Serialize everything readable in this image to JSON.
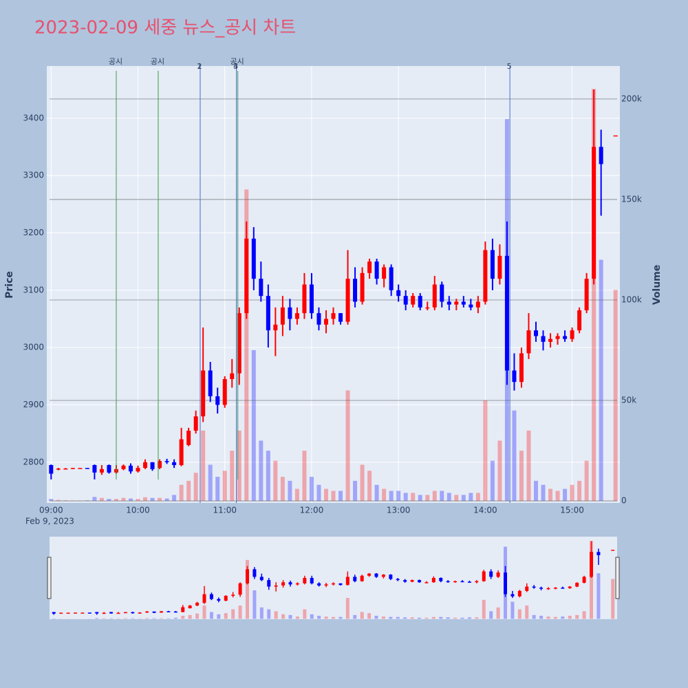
{
  "chart_data": {
    "type": "candlestick",
    "title": "2023-02-09 세중 뉴스_공시 차트",
    "y_label": "Price",
    "y2_label": "Volume",
    "x_sublabel": "Feb 9, 2023",
    "x": [
      "09:00",
      "09:05",
      "09:10",
      "09:15",
      "09:20",
      "09:25",
      "09:30",
      "09:35",
      "09:40",
      "09:45",
      "09:50",
      "09:55",
      "10:00",
      "10:05",
      "10:10",
      "10:15",
      "10:20",
      "10:25",
      "10:30",
      "10:35",
      "10:40",
      "10:45",
      "10:50",
      "10:55",
      "11:00",
      "11:05",
      "11:10",
      "11:15",
      "11:20",
      "11:25",
      "11:30",
      "11:35",
      "11:40",
      "11:45",
      "11:50",
      "11:55",
      "12:00",
      "12:05",
      "12:10",
      "12:15",
      "12:20",
      "12:25",
      "12:30",
      "12:35",
      "12:40",
      "12:45",
      "12:50",
      "12:55",
      "13:00",
      "13:05",
      "13:10",
      "13:15",
      "13:20",
      "13:25",
      "13:30",
      "13:35",
      "13:40",
      "13:45",
      "13:50",
      "13:55",
      "14:00",
      "14:05",
      "14:10",
      "14:15",
      "14:20",
      "14:25",
      "14:30",
      "14:35",
      "14:40",
      "14:45",
      "14:50",
      "14:55",
      "15:00",
      "15:05",
      "15:10",
      "15:15",
      "15:20",
      "15:30"
    ],
    "open": [
      2795,
      2788,
      2789,
      2789,
      2790,
      2790,
      2795,
      2782,
      2795,
      2782,
      2788,
      2794,
      2784,
      2790,
      2800,
      2790,
      2802,
      2800,
      2795,
      2830,
      2855,
      2880,
      2960,
      2915,
      2900,
      2945,
      2955,
      3060,
      3190,
      3120,
      3090,
      3030,
      3040,
      3070,
      3050,
      3060,
      3110,
      3060,
      3040,
      3050,
      3060,
      3045,
      3120,
      3080,
      3130,
      3150,
      3120,
      3140,
      3100,
      3090,
      3075,
      3090,
      3070,
      3070,
      3110,
      3080,
      3075,
      3080,
      3075,
      3070,
      3080,
      3170,
      3120,
      3160,
      2960,
      2940,
      2990,
      3030,
      3020,
      3010,
      3015,
      3020,
      3015,
      3030,
      3065,
      3120,
      3350,
      3370
    ],
    "high": [
      2796,
      2790,
      2790,
      2790,
      2790,
      2790,
      2796,
      2795,
      2796,
      2795,
      2796,
      2798,
      2794,
      2805,
      2800,
      2805,
      2806,
      2805,
      2860,
      2860,
      2890,
      3035,
      2975,
      2930,
      2950,
      2980,
      3070,
      3220,
      3210,
      3150,
      3110,
      3070,
      3090,
      3085,
      3070,
      3130,
      3130,
      3070,
      3065,
      3070,
      3060,
      3170,
      3140,
      3140,
      3155,
      3155,
      3145,
      3145,
      3110,
      3100,
      3095,
      3095,
      3080,
      3125,
      3115,
      3090,
      3085,
      3090,
      3085,
      3090,
      3185,
      3190,
      3180,
      3220,
      2990,
      3000,
      3060,
      3045,
      3030,
      3025,
      3025,
      3030,
      3035,
      3070,
      3130,
      3450,
      3380,
      3370
    ],
    "low": [
      2770,
      2786,
      2788,
      2788,
      2789,
      2789,
      2770,
      2778,
      2780,
      2780,
      2786,
      2780,
      2782,
      2788,
      2785,
      2788,
      2797,
      2790,
      2793,
      2828,
      2850,
      2870,
      2905,
      2885,
      2895,
      2930,
      2935,
      3050,
      3100,
      3080,
      3000,
      2985,
      3020,
      3030,
      3040,
      3050,
      3050,
      3030,
      3025,
      3040,
      3040,
      3040,
      3070,
      3075,
      3120,
      3110,
      3105,
      3090,
      3080,
      3065,
      3070,
      3065,
      3065,
      3065,
      3070,
      3065,
      3065,
      3070,
      3065,
      3060,
      3075,
      3100,
      3110,
      2935,
      2925,
      2930,
      2980,
      3010,
      2995,
      3000,
      3005,
      3010,
      3010,
      3025,
      3060,
      3110,
      3230,
      3370
    ],
    "close": [
      2780,
      2789,
      2789,
      2790,
      2790,
      2789,
      2782,
      2788,
      2782,
      2788,
      2794,
      2784,
      2790,
      2800,
      2788,
      2802,
      2800,
      2795,
      2840,
      2855,
      2880,
      2960,
      2915,
      2900,
      2945,
      2955,
      3060,
      3190,
      3120,
      3090,
      3030,
      3040,
      3070,
      3050,
      3060,
      3110,
      3060,
      3040,
      3050,
      3060,
      3045,
      3120,
      3080,
      3130,
      3150,
      3120,
      3140,
      3100,
      3090,
      3075,
      3090,
      3070,
      3070,
      3110,
      3080,
      3075,
      3080,
      3075,
      3070,
      3080,
      3170,
      3120,
      3160,
      2960,
      2940,
      2990,
      3030,
      3020,
      3010,
      3015,
      3020,
      3015,
      3030,
      3065,
      3120,
      3350,
      3320,
      3370
    ],
    "volume": [
      1000,
      500,
      300,
      200,
      200,
      300,
      2000,
      1500,
      1000,
      1000,
      1500,
      1200,
      1000,
      1800,
      1500,
      1500,
      1200,
      3000,
      8000,
      10000,
      14000,
      35000,
      18000,
      12000,
      15000,
      25000,
      35000,
      155000,
      75000,
      30000,
      25000,
      20000,
      12000,
      10000,
      6000,
      25000,
      12000,
      8000,
      6000,
      5000,
      5000,
      55000,
      10000,
      18000,
      15000,
      8000,
      6000,
      5000,
      5000,
      4000,
      4000,
      3000,
      3000,
      5000,
      5000,
      4000,
      3000,
      3000,
      4000,
      4000,
      50000,
      20000,
      30000,
      190000,
      45000,
      25000,
      35000,
      10000,
      8000,
      6000,
      5000,
      6000,
      8000,
      10000,
      20000,
      205000,
      120000,
      105000
    ],
    "increasing_color": "#ff0000",
    "decreasing_color": "#0000ff",
    "xlim": [
      "08:57",
      "15:33"
    ],
    "xticks": [
      "09:00",
      "10:00",
      "11:00",
      "12:00",
      "13:00",
      "14:00",
      "15:00"
    ],
    "ylim": [
      2729,
      3491
    ],
    "yticks": [
      2800,
      2900,
      3000,
      3100,
      3200,
      3300,
      3400
    ],
    "y2lim": [
      -1000,
      216400
    ],
    "y2ticks": [
      0,
      {
        "value": 50000,
        "label": "50k"
      },
      {
        "value": 100000,
        "label": "100k"
      },
      {
        "value": 150000,
        "label": "150k"
      },
      {
        "value": 200000,
        "label": "200k"
      }
    ],
    "annotations": [
      {
        "x": "09:45",
        "text": "공시",
        "color": "#3a9a4a"
      },
      {
        "x": "10:14",
        "text": "공시",
        "color": "#3a9a4a"
      },
      {
        "x": "10:43",
        "text": "1",
        "color": "#4a6fd0"
      },
      {
        "x": "10:43",
        "text": "2",
        "color": "#4a6fd0"
      },
      {
        "x": "11:08",
        "text": "3",
        "color": "#4a6fd0"
      },
      {
        "x": "11:08",
        "text": "4",
        "color": "#4a6fd0"
      },
      {
        "x": "11:09",
        "text": "공시",
        "color": "#3a9a4a"
      },
      {
        "x": "14:17",
        "text": "5",
        "color": "#4a6fd0"
      }
    ],
    "rangeslider": true
  }
}
